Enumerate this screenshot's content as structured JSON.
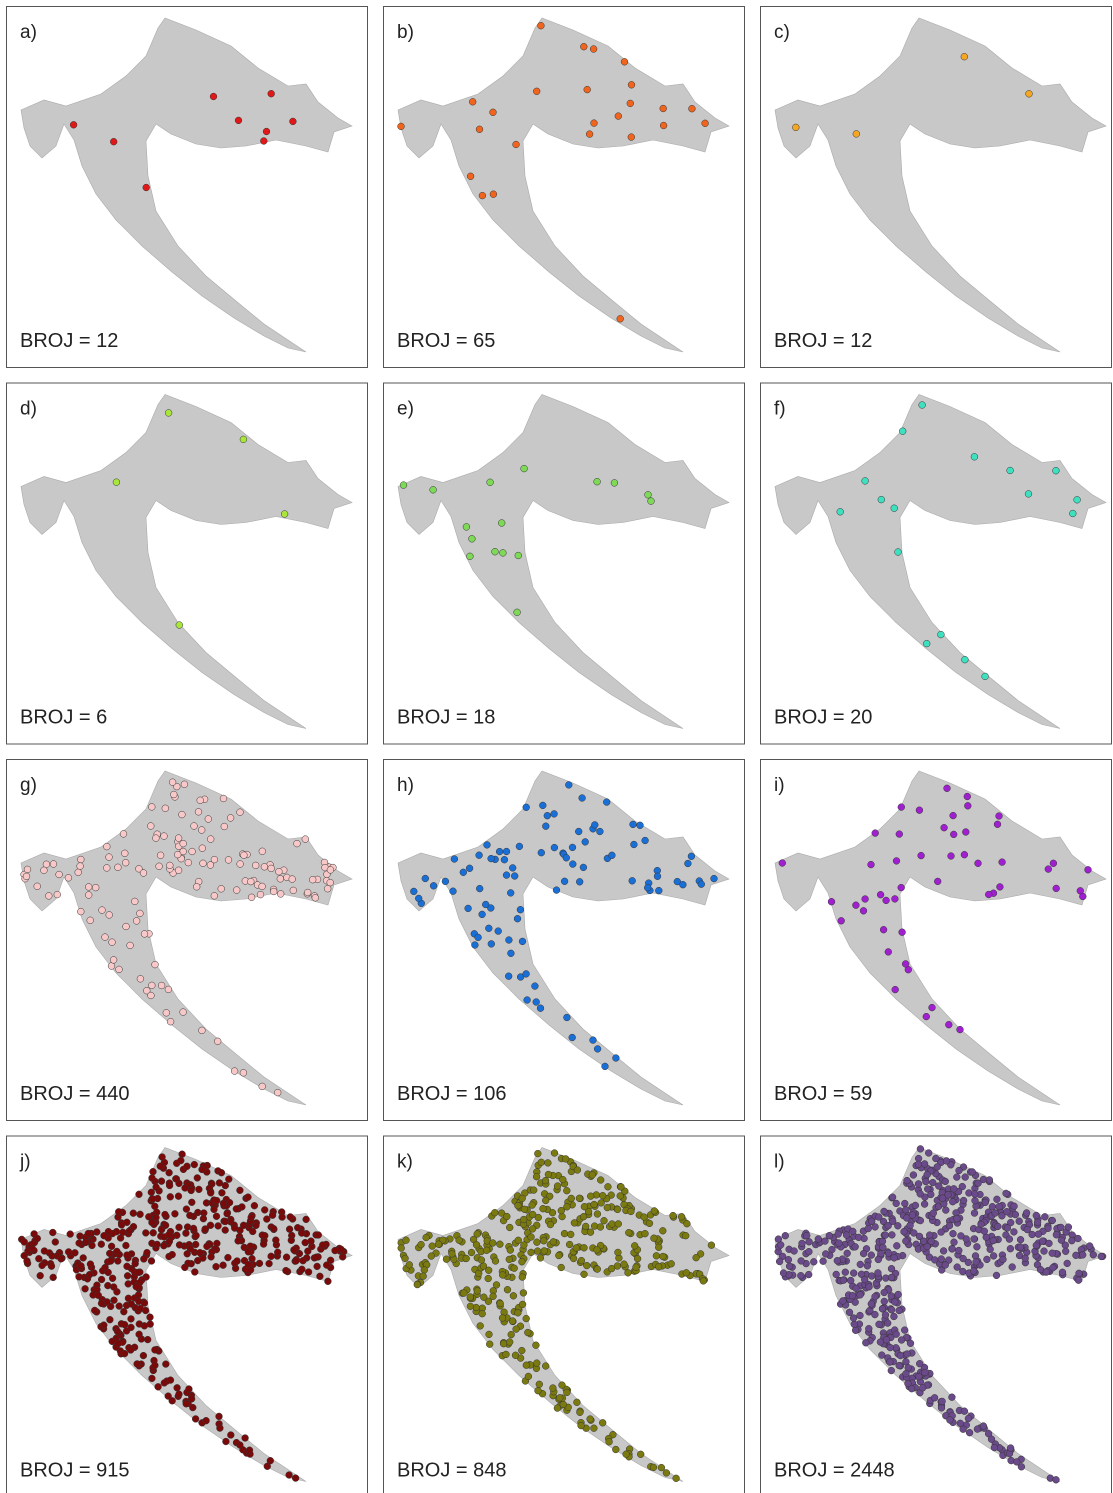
{
  "panels": [
    {
      "label": "a)",
      "count_label": "BROJ = 12",
      "color": "#e01818"
    },
    {
      "label": "b)",
      "count_label": "BROJ = 65",
      "color": "#f0641e"
    },
    {
      "label": "c)",
      "count_label": "BROJ = 12",
      "color": "#f5a623"
    },
    {
      "label": "d)",
      "count_label": "BROJ = 6",
      "color": "#a8e63a"
    },
    {
      "label": "e)",
      "count_label": "BROJ = 18",
      "color": "#7ed957"
    },
    {
      "label": "f)",
      "count_label": "BROJ = 20",
      "color": "#3ee0c0"
    },
    {
      "label": "g)",
      "count_label": "BROJ = 440",
      "color": "#f8c8c8"
    },
    {
      "label": "h)",
      "count_label": "BROJ = 106",
      "color": "#1a6fd6"
    },
    {
      "label": "i)",
      "count_label": "BROJ = 59",
      "color": "#a020d0"
    },
    {
      "label": "j)",
      "count_label": "BROJ = 915",
      "color": "#7a0a0a"
    },
    {
      "label": "k)",
      "count_label": "BROJ = 848",
      "color": "#7a7a10"
    },
    {
      "label": "l)",
      "count_label": "BROJ = 2448",
      "color": "#6a4a8a"
    }
  ]
}
